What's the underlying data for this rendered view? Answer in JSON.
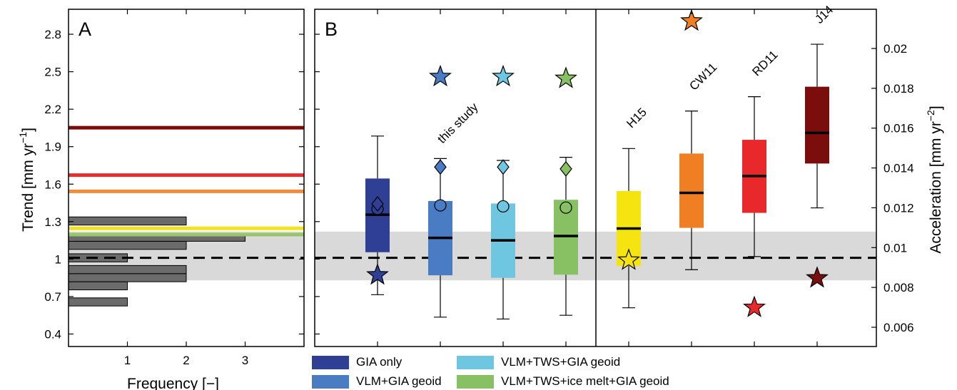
{
  "chart_data": [
    {
      "panel": "A",
      "type": "bar",
      "orientation": "horizontal",
      "xlabel": "Frequency [−]",
      "ylabel_main": "Trend [mm yr",
      "ylabel_sup": "−1",
      "ylabel_end": "]",
      "xticks": [
        "1",
        "2",
        "3"
      ],
      "yticks": [
        "0.4",
        "0.7",
        "1",
        "1.3",
        "1.6",
        "1.9",
        "2.2",
        "2.5",
        "2.8"
      ],
      "xlim": [
        0,
        4
      ],
      "ylim": [
        0.3,
        3.0
      ],
      "bin_width": 0.065,
      "bins": [
        {
          "center": 0.657,
          "count": 1
        },
        {
          "center": 0.786,
          "count": 1
        },
        {
          "center": 0.851,
          "count": 2
        },
        {
          "center": 0.916,
          "count": 2
        },
        {
          "center": 1.01,
          "count": 1
        },
        {
          "center": 1.11,
          "count": 2
        },
        {
          "center": 1.175,
          "count": 3
        },
        {
          "center": 1.305,
          "count": 2
        }
      ],
      "hlines": [
        {
          "y": 2.052,
          "color": "#7b0d0d"
        },
        {
          "y": 1.672,
          "color": "#e03030"
        },
        {
          "y": 1.542,
          "color": "#f08c3a"
        },
        {
          "y": 1.246,
          "color": "#f2e21a"
        },
        {
          "y": 1.196,
          "color": "#98c46c"
        }
      ],
      "reference_line": 1.01,
      "band": [
        0.83,
        1.22
      ]
    },
    {
      "panel": "B",
      "type": "boxplot",
      "ylabel_right_main": "Acceleration [mm yr",
      "ylabel_right_sup": "−2",
      "ylabel_right_end": "]",
      "yticks_right": [
        "0.006",
        "0.008",
        "0.01",
        "0.012",
        "0.014",
        "0.016",
        "0.018",
        "0.02"
      ],
      "ylim_trend": [
        0.3,
        3.0
      ],
      "group_label": "this study",
      "legend": [
        "GIA only",
        "VLM+GIA geoid",
        "VLM+TWS+GIA geoid",
        "VLM+TWS+ice melt+GIA geoid"
      ],
      "boxes": [
        {
          "label": "",
          "color": "#2e3f94",
          "whisker_low": 0.715,
          "q1": 1.055,
          "median": 1.355,
          "q3": 1.645,
          "whisker_high": 1.985,
          "star": 0.872,
          "star_color": "#2e3f94",
          "circle": 1.402,
          "diamond": 1.442
        },
        {
          "label": "",
          "color": "#4a7cc4",
          "whisker_low": 0.535,
          "q1": 0.87,
          "median": 1.17,
          "q3": 1.465,
          "whisker_high": 1.805,
          "star": 2.46,
          "star_color": "#4a7cc4",
          "circle": 1.43,
          "diamond": 1.737
        },
        {
          "label": "",
          "color": "#6ec6e0",
          "whisker_low": 0.52,
          "q1": 0.85,
          "median": 1.15,
          "q3": 1.445,
          "whisker_high": 1.79,
          "star": 2.46,
          "star_color": "#6ec6e0",
          "circle": 1.422,
          "diamond": 1.737
        },
        {
          "label": "",
          "color": "#88c064",
          "whisker_low": 0.55,
          "q1": 0.875,
          "median": 1.185,
          "q3": 1.475,
          "whisker_high": 1.815,
          "star": 2.446,
          "star_color": "#88c064",
          "circle": 1.412,
          "diamond": 1.722
        },
        {
          "label": "H15",
          "color": "#f5e40f",
          "whisker_low": 0.61,
          "q1": 0.945,
          "median": 1.245,
          "q3": 1.545,
          "whisker_high": 1.885,
          "star": 0.99,
          "star_color": "#f5e40f"
        },
        {
          "label": "CW11",
          "color": "#f07f23",
          "whisker_low": 0.915,
          "q1": 1.25,
          "median": 1.53,
          "q3": 1.845,
          "whisker_high": 2.185,
          "star": 2.905,
          "star_color": "#f07f23"
        },
        {
          "label": "RD11",
          "color": "#e8282a",
          "whisker_low": 1.02,
          "q1": 1.37,
          "median": 1.665,
          "q3": 1.955,
          "whisker_high": 2.3,
          "star": 0.612,
          "star_color": "#e8282a"
        },
        {
          "label": "J14",
          "color": "#7b0d0d",
          "whisker_low": 1.41,
          "q1": 1.765,
          "median": 2.01,
          "q3": 2.38,
          "whisker_high": 2.72,
          "star": 0.848,
          "star_color": "#7b0d0d"
        }
      ],
      "reference_line": 1.01,
      "band": [
        0.83,
        1.22
      ]
    }
  ]
}
